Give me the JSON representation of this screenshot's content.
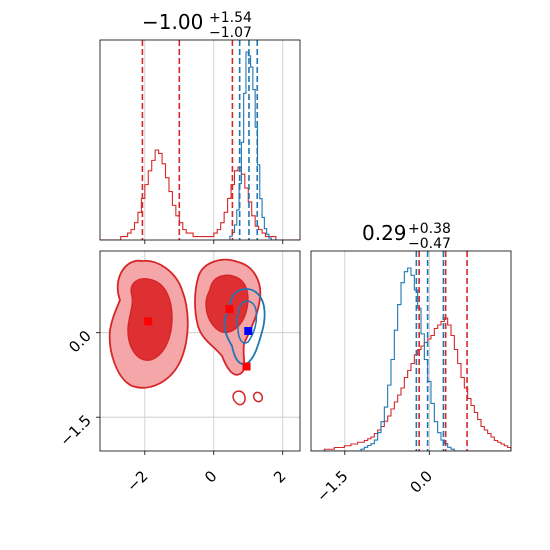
{
  "chart_data": {
    "type": "corner",
    "colors": {
      "red": "#d62728",
      "blue": "#1f77b4",
      "red_fill": "#f0a0a3",
      "grid": "#c8c8c8"
    },
    "parameters": [
      {
        "title": {
          "value": "−1.00",
          "sup": "+1.54",
          "sub": "−1.07"
        },
        "range": [
          -3.3,
          2.5
        ],
        "ticks": [
          -2,
          0,
          2
        ],
        "tick_labels": [
          "−2",
          "0",
          "2"
        ]
      },
      {
        "title": {
          "value": "0.29",
          "sup": "+0.38",
          "sub": "−0.47"
        },
        "range": [
          -2.1,
          1.45
        ],
        "ticks": [
          -1.5,
          0.0
        ],
        "tick_labels": [
          "−1.5",
          "0.0"
        ]
      }
    ],
    "y_ticks_2d": [
      0.0,
      -1.5
    ],
    "y_tick_labels_2d": [
      "0.0",
      "−1.5"
    ],
    "grid_lines": {
      "x1": [
        -2,
        0,
        2
      ],
      "x2": [
        -1.5,
        0.0
      ],
      "y2": [
        0.0,
        -1.5
      ]
    },
    "quantiles": {
      "red_x1": [
        -2.07,
        -1.0,
        0.54
      ],
      "blue_x1": [
        0.75,
        1.02,
        1.26
      ],
      "red_x2": [
        -0.18,
        0.29,
        0.67
      ],
      "blue_x2": [
        -0.23,
        -0.03,
        0.25
      ]
    },
    "markers": [
      {
        "series": "red",
        "x": -1.9,
        "y": 0.2
      },
      {
        "series": "red",
        "x": 0.45,
        "y": 0.42
      },
      {
        "series": "red",
        "x": 0.95,
        "y": -0.6
      },
      {
        "series": "blue",
        "x": 1.0,
        "y": 0.03
      }
    ],
    "hist_x1": {
      "bins_start": -3.3,
      "bins_end": 2.5,
      "red_bins": 58,
      "blue_bins": 30,
      "blue_start": 0.0,
      "blue_end": 2.0,
      "red": [
        0,
        0,
        0,
        0,
        0,
        0,
        1,
        1,
        2,
        3,
        5,
        8,
        12,
        16,
        20,
        23,
        26,
        25,
        22,
        18,
        14,
        10,
        7,
        5,
        3,
        2,
        2,
        1,
        1,
        1,
        1,
        1,
        1,
        2,
        3,
        5,
        8,
        12,
        16,
        20,
        21,
        19,
        15,
        11,
        7,
        4,
        3,
        2,
        1,
        1,
        1,
        0,
        0,
        0,
        0,
        0,
        0,
        0
      ],
      "blue": [
        0,
        0,
        0,
        0,
        0,
        0,
        0,
        2,
        4,
        8,
        16,
        30,
        52,
        78,
        100,
        98,
        92,
        80,
        60,
        40,
        22,
        12,
        6,
        3,
        1,
        0,
        0,
        0,
        0,
        0
      ]
    },
    "hist_x2": {
      "bins_start": -2.1,
      "bins_end": 1.45,
      "bins": 60,
      "red": [
        0,
        0,
        0,
        0,
        1,
        1,
        1,
        2,
        2,
        2,
        3,
        3,
        4,
        4,
        5,
        5,
        6,
        7,
        8,
        10,
        12,
        14,
        17,
        20,
        24,
        28,
        32,
        36,
        42,
        46,
        50,
        55,
        58,
        60,
        62,
        64,
        66,
        70,
        72,
        74,
        76,
        72,
        66,
        58,
        50,
        42,
        36,
        30,
        26,
        22,
        18,
        14,
        12,
        10,
        8,
        6,
        5,
        4,
        3,
        2
      ],
      "blue": [
        0,
        0,
        0,
        0,
        0,
        0,
        0,
        0,
        0,
        0,
        0,
        0,
        0,
        0,
        0,
        1,
        2,
        3,
        4,
        6,
        10,
        16,
        24,
        36,
        50,
        66,
        80,
        92,
        98,
        100,
        96,
        88,
        78,
        64,
        50,
        38,
        26,
        16,
        10,
        6,
        4,
        2,
        1,
        0,
        0,
        0,
        0,
        0,
        0,
        0,
        0,
        0,
        0,
        0,
        0,
        0,
        0,
        0,
        0,
        0
      ]
    }
  }
}
